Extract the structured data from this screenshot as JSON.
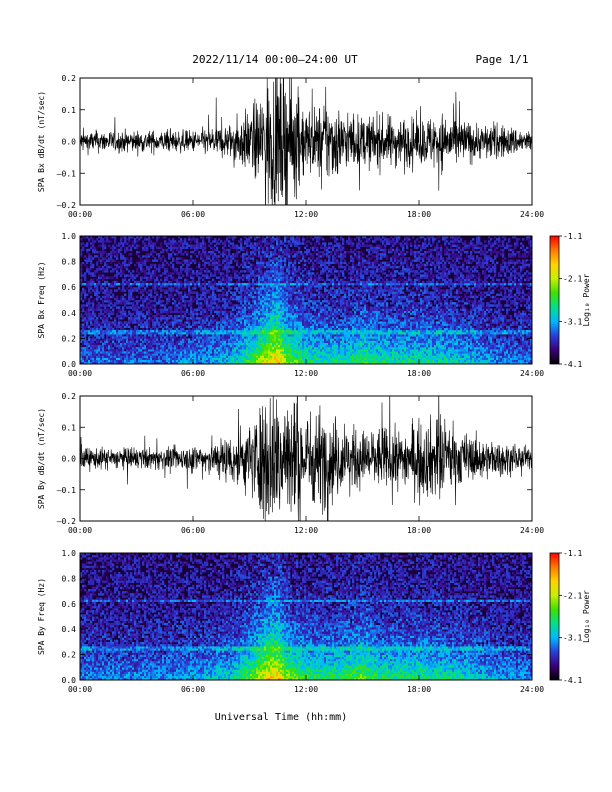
{
  "header": {
    "title": "2022/11/14  00:00—24:00 UT",
    "page": "Page 1/1"
  },
  "x_axis_title": "Universal Time (hh:mm)",
  "colorbar": {
    "label": "Log₁₀ Power",
    "ticks": [
      "-1.1",
      "-2.1",
      "-3.1",
      "-4.1"
    ],
    "range": [
      -4.1,
      -1.1
    ],
    "colors": [
      "#000000",
      "#3b007a",
      "#2a3fd8",
      "#00b8ff",
      "#00e08a",
      "#40e000",
      "#c8f000",
      "#ffd400",
      "#ff7a00",
      "#ff0000"
    ]
  },
  "chart_data": [
    {
      "type": "line",
      "panel": "Bx timeseries",
      "ylabel": "SPA Bx dB/dt (nT/sec)",
      "xlim": [
        0,
        24
      ],
      "ylim": [
        -0.2,
        0.2
      ],
      "yticks": [
        "0.2",
        "0.1",
        "0.0",
        "–0.1",
        "–0.2"
      ],
      "xticks": [
        "00:00",
        "06:00",
        "12:00",
        "18:00",
        "24:00"
      ],
      "envelope_hours": [
        0,
        1,
        2,
        3,
        4,
        5,
        6,
        7,
        8,
        9,
        9.5,
        10,
        10.5,
        11,
        11.5,
        12,
        12.5,
        13,
        13.5,
        14,
        15,
        16,
        17,
        18,
        19,
        20,
        21,
        22,
        23,
        24
      ],
      "envelope_amplitude": [
        0.03,
        0.03,
        0.03,
        0.03,
        0.03,
        0.03,
        0.03,
        0.04,
        0.05,
        0.09,
        0.12,
        0.2,
        0.2,
        0.2,
        0.14,
        0.1,
        0.09,
        0.12,
        0.11,
        0.08,
        0.07,
        0.07,
        0.07,
        0.06,
        0.08,
        0.07,
        0.05,
        0.05,
        0.04,
        0.03
      ]
    },
    {
      "type": "heatmap",
      "panel": "Bx spectrogram",
      "ylabel": "SPA Bx Freq (Hz)",
      "xlim": [
        0,
        24
      ],
      "ylim": [
        0.0,
        1.0
      ],
      "yticks": [
        "1.0",
        "0.8",
        "0.6",
        "0.4",
        "0.2",
        "0.0"
      ],
      "xticks": [
        "00:00",
        "06:00",
        "12:00",
        "18:00",
        "24:00"
      ],
      "activity_hours": [
        0,
        2,
        4,
        6,
        8,
        9,
        10,
        10.5,
        11,
        12,
        13,
        14,
        15,
        16,
        18,
        20,
        22,
        24
      ],
      "activity_level": [
        0.2,
        0.2,
        0.2,
        0.25,
        0.35,
        0.55,
        0.85,
        0.95,
        0.7,
        0.5,
        0.45,
        0.45,
        0.55,
        0.45,
        0.45,
        0.4,
        0.25,
        0.2
      ]
    },
    {
      "type": "line",
      "panel": "By timeseries",
      "ylabel": "SPA By dB/dt (nT/sec)",
      "xlim": [
        0,
        24
      ],
      "ylim": [
        -0.2,
        0.2
      ],
      "yticks": [
        "0.2",
        "0.1",
        "0.0",
        "–0.1",
        "–0.2"
      ],
      "xticks": [
        "00:00",
        "06:00",
        "12:00",
        "18:00",
        "24:00"
      ],
      "envelope_hours": [
        0,
        1,
        2,
        3,
        4,
        5,
        6,
        7,
        8,
        9,
        9.5,
        10,
        10.5,
        11,
        11.5,
        12,
        12.5,
        13,
        13.5,
        14,
        15,
        16,
        17,
        18,
        19,
        20,
        21,
        22,
        23,
        24
      ],
      "envelope_amplitude": [
        0.03,
        0.03,
        0.03,
        0.03,
        0.03,
        0.03,
        0.04,
        0.05,
        0.07,
        0.1,
        0.14,
        0.2,
        0.2,
        0.2,
        0.16,
        0.13,
        0.14,
        0.14,
        0.12,
        0.09,
        0.08,
        0.09,
        0.08,
        0.1,
        0.12,
        0.08,
        0.06,
        0.05,
        0.04,
        0.03
      ]
    },
    {
      "type": "heatmap",
      "panel": "By spectrogram",
      "ylabel": "SPA By Freq (Hz)",
      "xlim": [
        0,
        24
      ],
      "ylim": [
        0.0,
        1.0
      ],
      "yticks": [
        "1.0",
        "0.8",
        "0.6",
        "0.4",
        "0.2",
        "0.0"
      ],
      "xticks": [
        "00:00",
        "06:00",
        "12:00",
        "18:00",
        "24:00"
      ],
      "activity_hours": [
        0,
        2,
        4,
        6,
        8,
        9,
        10,
        10.5,
        11,
        12,
        13,
        14,
        15,
        16,
        18,
        20,
        22,
        24
      ],
      "activity_level": [
        0.25,
        0.25,
        0.25,
        0.3,
        0.4,
        0.6,
        0.9,
        0.95,
        0.7,
        0.55,
        0.5,
        0.55,
        0.65,
        0.5,
        0.5,
        0.45,
        0.3,
        0.25
      ]
    }
  ]
}
